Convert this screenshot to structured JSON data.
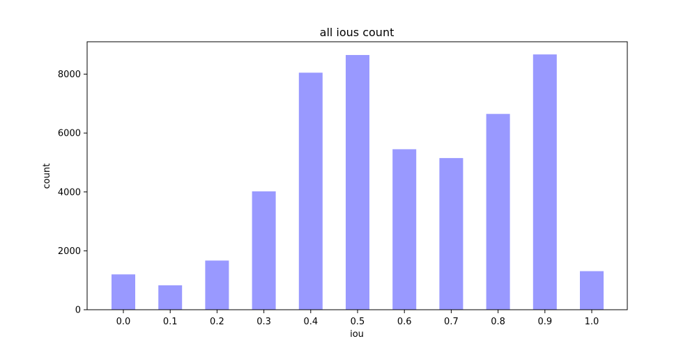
{
  "chart_data": {
    "type": "bar",
    "title": "all ious count",
    "xlabel": "iou",
    "ylabel": "count",
    "categories": [
      "0.0",
      "0.1",
      "0.2",
      "0.3",
      "0.4",
      "0.5",
      "0.6",
      "0.7",
      "0.8",
      "0.9",
      "1.0"
    ],
    "values": [
      1200,
      830,
      1670,
      4020,
      8050,
      8650,
      5450,
      5150,
      6650,
      8670,
      1310
    ],
    "yticks": [
      0,
      2000,
      4000,
      6000,
      8000
    ],
    "ylim": [
      0,
      9100
    ],
    "bar_color": "#9999ff",
    "grid": false,
    "legend": "none"
  }
}
